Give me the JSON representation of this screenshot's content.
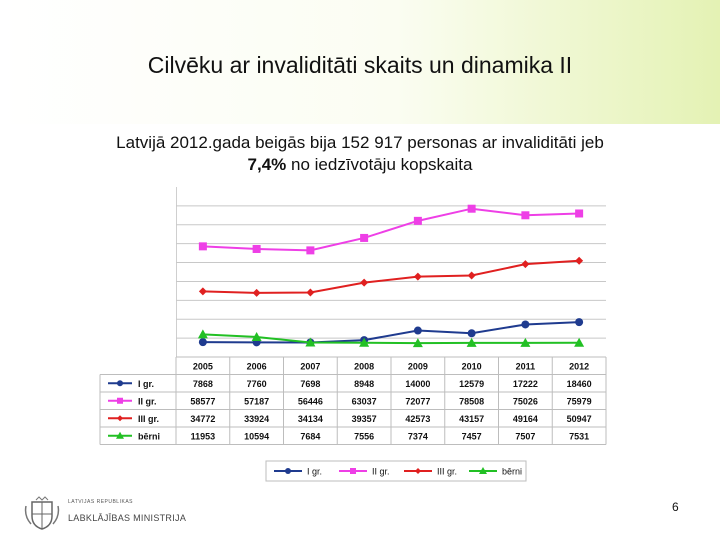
{
  "slide": {
    "title": "Cilvēku ar invaliditāti skaits un dinamika II",
    "subtitle_line1": "Latvijā 2012.gada beigās bija 152 917 personas ar invaliditāti jeb",
    "subtitle_bold": "7,4%",
    "subtitle_line2_rest": " no iedzīvotāju kopskaita",
    "page_number": "6",
    "logo_small": "LATVIJAS REPUBLIKAS",
    "logo_big": "LABKLĀJĪBAS MINISTRIJA"
  },
  "chart_data": {
    "type": "line",
    "categories": [
      "2005",
      "2006",
      "2007",
      "2008",
      "2009",
      "2010",
      "2011",
      "2012"
    ],
    "ylim": [
      0,
      90000
    ],
    "grid": true,
    "legend_position": "bottom",
    "series": [
      {
        "name": "I gr.",
        "marker": "circle",
        "color": "#1f3b8f",
        "values": [
          7868,
          7760,
          7698,
          8948,
          14000,
          12579,
          17222,
          18460
        ]
      },
      {
        "name": "II gr.",
        "marker": "square",
        "color": "#ee3fe6",
        "values": [
          58577,
          57187,
          56446,
          63037,
          72077,
          78508,
          75026,
          75979
        ]
      },
      {
        "name": "III gr.",
        "marker": "diamond",
        "color": "#e02020",
        "values": [
          34772,
          33924,
          34134,
          39357,
          42573,
          43157,
          49164,
          50947
        ]
      },
      {
        "name": "bērni",
        "marker": "triangle",
        "color": "#22c024",
        "values": [
          11953,
          10594,
          7684,
          7556,
          7374,
          7457,
          7507,
          7531
        ]
      }
    ]
  }
}
